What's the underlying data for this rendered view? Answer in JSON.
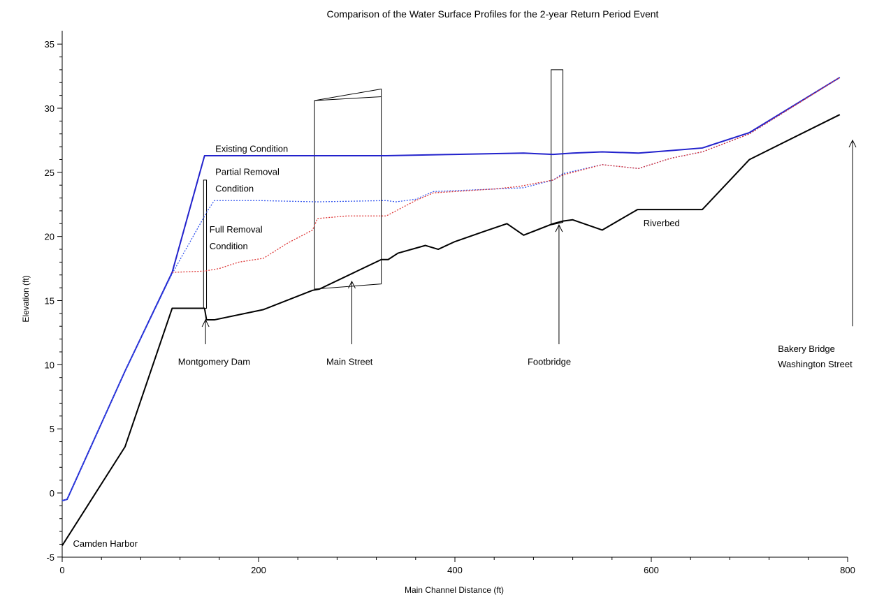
{
  "chart_data": {
    "type": "line",
    "title": "Comparison of the Water Surface Profiles for the 2-year Return Period Event",
    "xlabel": "Main Channel Distance (ft)",
    "ylabel": "Elevation (ft)",
    "xlim": [
      0,
      800
    ],
    "ylim": [
      -5,
      36
    ],
    "xticks": [
      0,
      200,
      400,
      600,
      800
    ],
    "yticks": [
      -5,
      0,
      5,
      10,
      15,
      20,
      25,
      30,
      35
    ],
    "grid": false,
    "legend": "none",
    "series": [
      {
        "name": "Existing Condition",
        "color": "#2222cc",
        "style": "solid",
        "points": [
          [
            0,
            -0.6
          ],
          [
            5,
            -0.5
          ],
          [
            64,
            9.5
          ],
          [
            112,
            17.2
          ],
          [
            145,
            26.3
          ],
          [
            200,
            26.3
          ],
          [
            260,
            26.3
          ],
          [
            330,
            26.3
          ],
          [
            400,
            26.4
          ],
          [
            470,
            26.5
          ],
          [
            500,
            26.4
          ],
          [
            520,
            26.5
          ],
          [
            550,
            26.6
          ],
          [
            587,
            26.5
          ],
          [
            620,
            26.7
          ],
          [
            652,
            26.9
          ],
          [
            700,
            28.1
          ],
          [
            792,
            32.4
          ]
        ]
      },
      {
        "name": "Partial Removal Condition",
        "color": "#3355ee",
        "style": "dotted",
        "points": [
          [
            0,
            -0.6
          ],
          [
            5,
            -0.5
          ],
          [
            64,
            9.5
          ],
          [
            112,
            17.1
          ],
          [
            148,
            22.0
          ],
          [
            155,
            22.8
          ],
          [
            200,
            22.8
          ],
          [
            260,
            22.7
          ],
          [
            330,
            22.8
          ],
          [
            340,
            22.7
          ],
          [
            360,
            22.9
          ],
          [
            378,
            23.5
          ],
          [
            440,
            23.7
          ],
          [
            470,
            23.8
          ],
          [
            500,
            24.4
          ],
          [
            510,
            24.9
          ],
          [
            550,
            25.6
          ],
          [
            587,
            25.3
          ],
          [
            620,
            26.1
          ],
          [
            652,
            26.6
          ],
          [
            700,
            28.0
          ],
          [
            792,
            32.4
          ]
        ]
      },
      {
        "name": "Full Removal Condition",
        "color": "#dd3333",
        "style": "dotted",
        "points": [
          [
            112,
            17.2
          ],
          [
            145,
            17.3
          ],
          [
            160,
            17.5
          ],
          [
            180,
            18.0
          ],
          [
            205,
            18.3
          ],
          [
            230,
            19.5
          ],
          [
            255,
            20.5
          ],
          [
            260,
            21.4
          ],
          [
            290,
            21.6
          ],
          [
            330,
            21.6
          ],
          [
            360,
            22.8
          ],
          [
            378,
            23.4
          ],
          [
            440,
            23.7
          ],
          [
            465,
            23.9
          ],
          [
            500,
            24.4
          ],
          [
            510,
            24.8
          ],
          [
            550,
            25.6
          ],
          [
            587,
            25.3
          ],
          [
            620,
            26.1
          ],
          [
            652,
            26.6
          ],
          [
            700,
            28.0
          ],
          [
            792,
            32.4
          ]
        ]
      },
      {
        "name": "Riverbed",
        "color": "#000000",
        "style": "solid",
        "points": [
          [
            0,
            -4.1
          ],
          [
            64,
            3.6
          ],
          [
            112,
            14.4
          ],
          [
            145,
            14.4
          ],
          [
            147,
            13.5
          ],
          [
            155,
            13.5
          ],
          [
            205,
            14.3
          ],
          [
            255,
            15.8
          ],
          [
            262,
            15.9
          ],
          [
            325,
            18.2
          ],
          [
            332,
            18.2
          ],
          [
            342,
            18.7
          ],
          [
            370,
            19.3
          ],
          [
            383,
            19.0
          ],
          [
            400,
            19.6
          ],
          [
            430,
            20.4
          ],
          [
            453,
            21.0
          ],
          [
            470,
            20.1
          ],
          [
            500,
            21.0
          ],
          [
            510,
            21.2
          ],
          [
            520,
            21.3
          ],
          [
            550,
            20.5
          ],
          [
            586,
            22.1
          ],
          [
            652,
            22.1
          ],
          [
            700,
            26.0
          ],
          [
            792,
            29.5
          ]
        ]
      }
    ],
    "structures": [
      {
        "name": "Montgomery Dam",
        "polygon": [
          [
            144,
            24.4
          ],
          [
            147,
            24.4
          ],
          [
            147,
            14.4
          ],
          [
            144,
            14.4
          ]
        ]
      },
      {
        "name": "Main Street",
        "polygon": [
          [
            257,
            30.6
          ],
          [
            325,
            31.5
          ],
          [
            325,
            16.3
          ],
          [
            257,
            15.9
          ]
        ],
        "inner_line": [
          [
            257,
            30.6
          ],
          [
            325,
            30.9
          ]
        ]
      },
      {
        "name": "Footbridge",
        "polygon": [
          [
            498,
            33.0
          ],
          [
            510,
            33.0
          ],
          [
            510,
            21.1
          ],
          [
            498,
            20.9
          ]
        ]
      }
    ],
    "annotations": [
      {
        "text": "Existing Condition",
        "x": 156,
        "y": 26.6
      },
      {
        "text": "Partial Removal",
        "x": 156,
        "y": 24.8
      },
      {
        "text": "Condition",
        "x": 156,
        "y": 23.5
      },
      {
        "text": "Full Removal",
        "x": 150,
        "y": 20.3
      },
      {
        "text": "Condition",
        "x": 150,
        "y": 19.0
      },
      {
        "text": "Riverbed",
        "x": 592,
        "y": 20.8
      },
      {
        "text": "Camden Harbor",
        "x": 11,
        "y": -4.2
      },
      {
        "text": "Montgomery Dam",
        "x": 118,
        "y": 10.0
      },
      {
        "text": "Main Street",
        "x": 269,
        "y": 10.0
      },
      {
        "text": "Footbridge",
        "x": 474,
        "y": 10.0
      },
      {
        "text": "Bakery Bridge",
        "x": 729,
        "y": 11.0
      },
      {
        "text": "Washington Street",
        "x": 729,
        "y": 9.8
      }
    ],
    "arrows": [
      {
        "label": "Montgomery Dam",
        "x": 146,
        "from_y": 11.6,
        "to_y": 13.5
      },
      {
        "label": "Main Street",
        "x": 295,
        "from_y": 11.6,
        "to_y": 16.5
      },
      {
        "label": "Footbridge",
        "x": 506,
        "from_y": 11.6,
        "to_y": 20.9
      },
      {
        "label": "Bakery Bridge Washington Street",
        "x": 805,
        "from_y": 13.0,
        "to_y": 27.5
      }
    ]
  }
}
